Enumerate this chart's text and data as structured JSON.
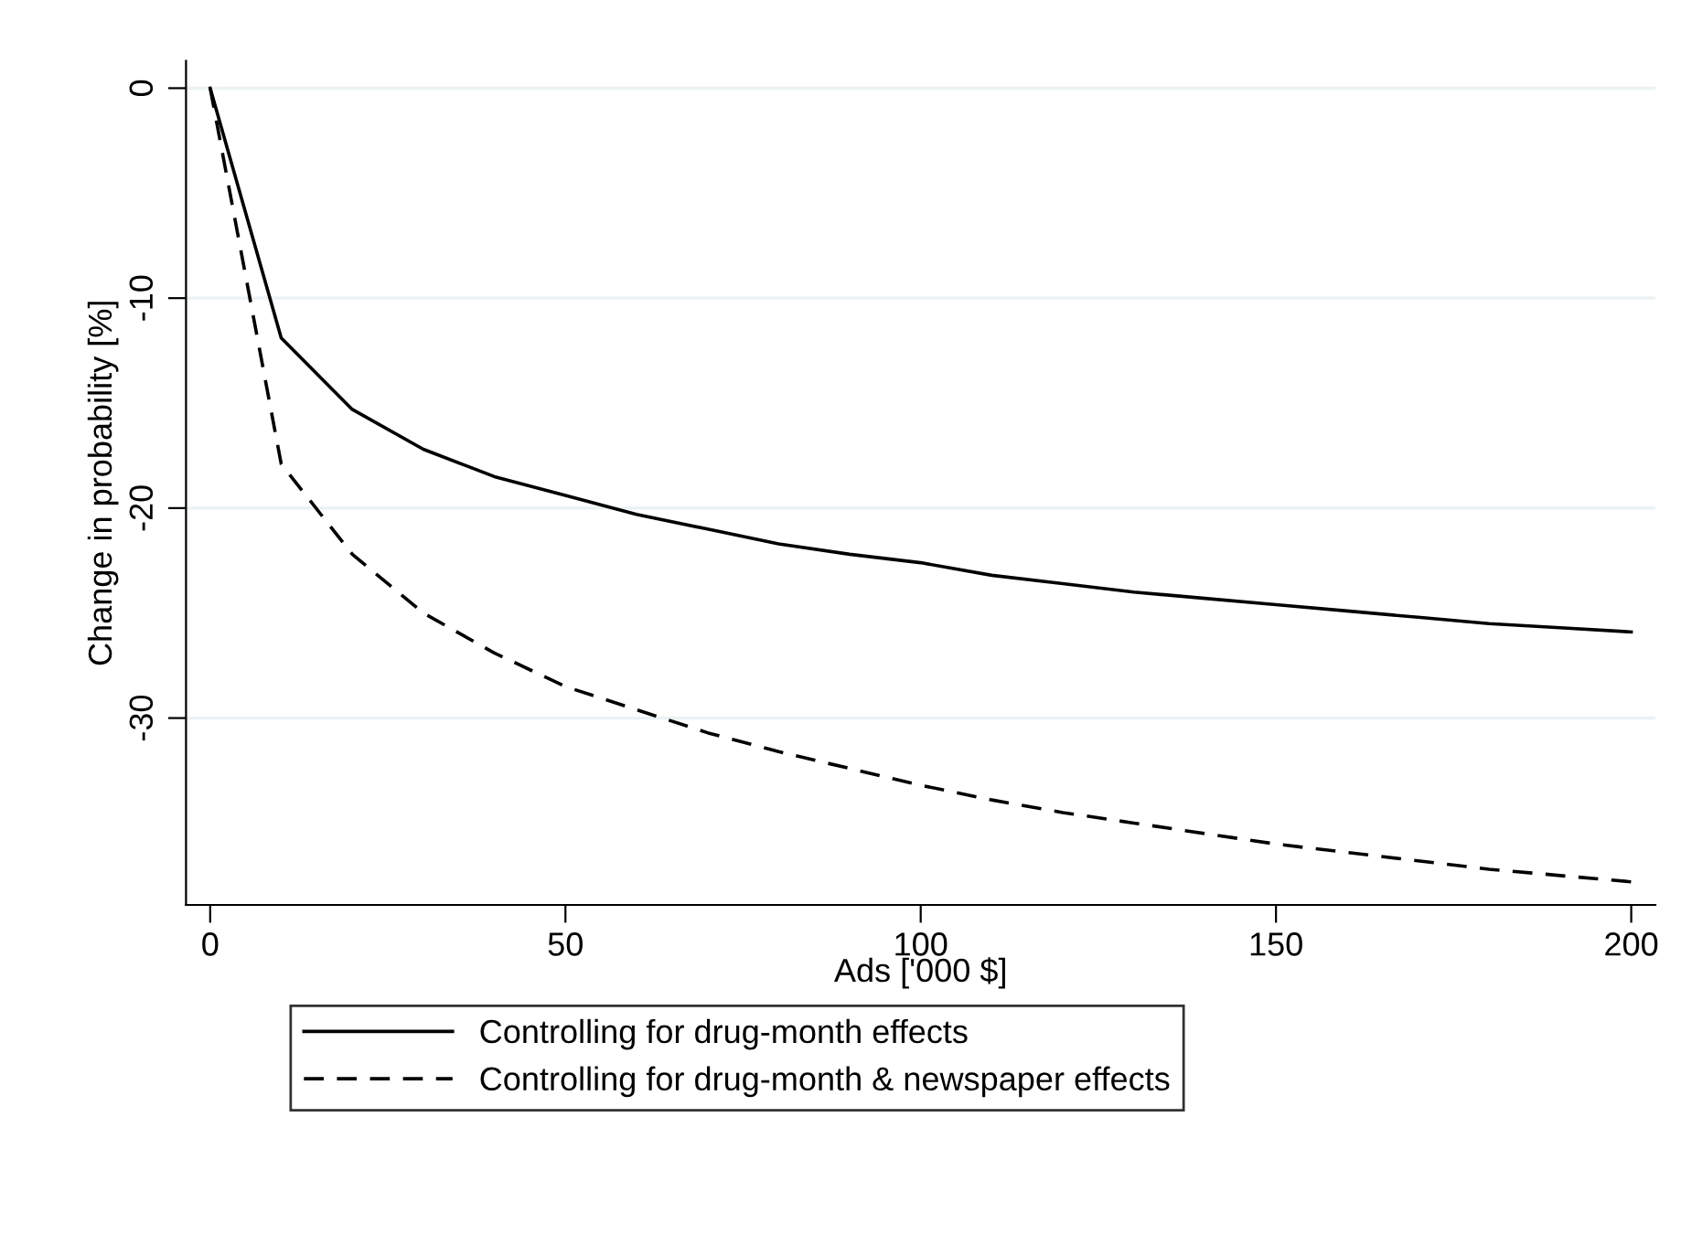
{
  "chart_data": {
    "type": "line",
    "xlabel": "Ads ['000 $]",
    "ylabel": "Change in probability [%]",
    "x": [
      0,
      10,
      20,
      30,
      40,
      50,
      60,
      70,
      80,
      90,
      100,
      110,
      120,
      130,
      140,
      150,
      160,
      170,
      180,
      190,
      200
    ],
    "series": [
      {
        "name": "Controlling for drug-month effects",
        "color": "#000000",
        "line_style": "solid",
        "values": [
          0,
          -11.9,
          -15.3,
          -17.2,
          -18.5,
          -19.4,
          -20.3,
          -21.0,
          -21.7,
          -22.2,
          -22.6,
          -23.2,
          -23.6,
          -24.0,
          -24.3,
          -24.6,
          -24.9,
          -25.2,
          -25.5,
          -25.7,
          -25.9
        ]
      },
      {
        "name": "Controlling for drug-month & newspaper effects",
        "color": "#000000",
        "line_style": "dashed",
        "values": [
          0,
          -17.9,
          -22.2,
          -25.0,
          -26.9,
          -28.5,
          -29.6,
          -30.7,
          -31.6,
          -32.4,
          -33.2,
          -33.9,
          -34.5,
          -35.0,
          -35.5,
          -36.0,
          -36.4,
          -36.8,
          -37.2,
          -37.5,
          -37.8
        ]
      }
    ],
    "xlim": [
      -3.4,
      203.4
    ],
    "ylim": [
      -38.9,
      1.3
    ],
    "xticks": [
      0,
      50,
      100,
      150,
      200
    ],
    "yticks": [
      -30,
      -20,
      -10,
      0
    ],
    "grid": "y",
    "legend": "bottom",
    "marker": "none"
  }
}
